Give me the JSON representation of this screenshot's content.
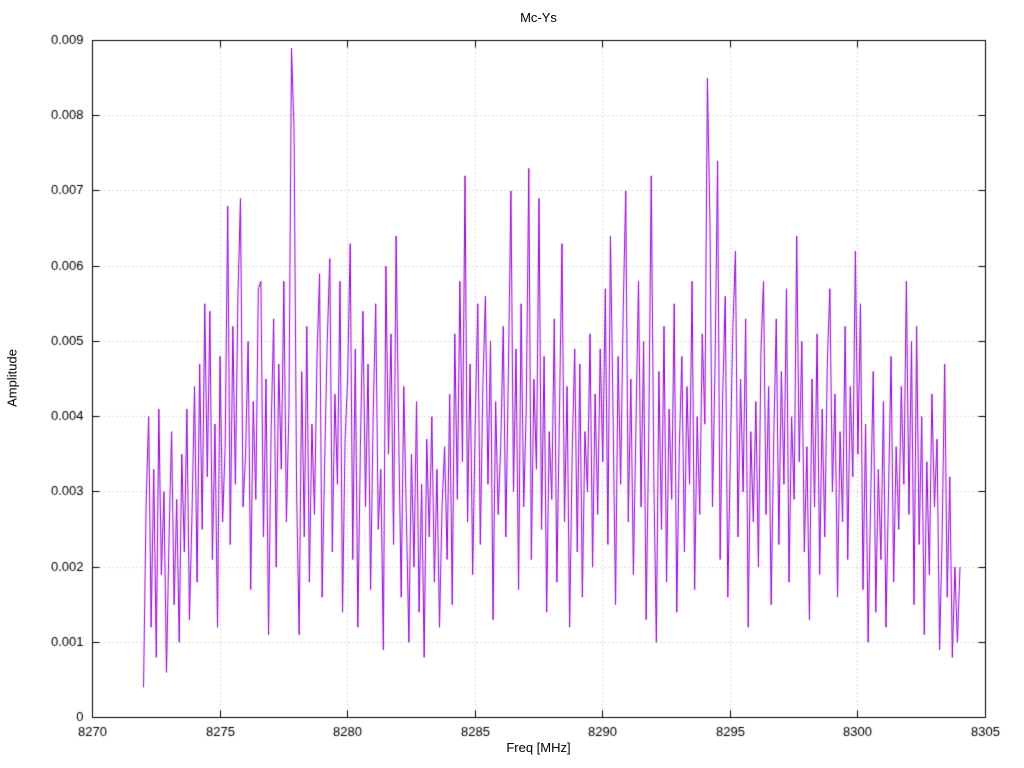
{
  "style": {
    "line_color": "#9400d3",
    "grid_color": "#b8b8b8",
    "axis_color": "#000000",
    "text_color": "#000000",
    "background": "#ffffff"
  },
  "chart_data": {
    "type": "line",
    "title": "Mc-Ys",
    "xlabel": "Freq [MHz]",
    "ylabel": "Amplitude",
    "xlim": [
      8270,
      8305
    ],
    "ylim": [
      0,
      0.009
    ],
    "grid": true,
    "legend": "none",
    "x_tick_values": [
      8270,
      8275,
      8280,
      8285,
      8290,
      8295,
      8300,
      8305
    ],
    "x_tick_labels": [
      "8270",
      "8275",
      "8280",
      "8285",
      "8290",
      "8295",
      "8300",
      "8305"
    ],
    "y_tick_values": [
      0,
      0.001,
      0.002,
      0.003,
      0.004,
      0.005,
      0.006,
      0.007,
      0.008,
      0.009
    ],
    "y_tick_labels": [
      "0",
      "0.001",
      "0.002",
      "0.003",
      "0.004",
      "0.005",
      "0.006",
      "0.007",
      "0.008",
      "0.009"
    ],
    "x_start": 8272.0,
    "x_step": 0.1,
    "y_scale": 0.0001,
    "values": [
      4,
      28,
      40,
      12,
      33,
      8,
      41,
      19,
      30,
      6,
      24,
      38,
      15,
      29,
      10,
      35,
      22,
      41,
      13,
      27,
      44,
      18,
      47,
      25,
      55,
      32,
      54,
      21,
      39,
      12,
      48,
      26,
      36,
      68,
      23,
      52,
      31,
      56,
      69,
      28,
      35,
      50,
      17,
      42,
      29,
      57,
      58,
      24,
      45,
      11,
      38,
      53,
      20,
      47,
      33,
      58,
      26,
      41,
      89,
      78,
      30,
      11,
      46,
      24,
      52,
      18,
      39,
      27,
      48,
      59,
      16,
      34,
      50,
      61,
      22,
      43,
      31,
      58,
      14,
      37,
      45,
      63,
      21,
      49,
      12,
      36,
      54,
      28,
      47,
      17,
      40,
      55,
      25,
      33,
      9,
      60,
      35,
      51,
      23,
      64,
      38,
      16,
      44,
      27,
      10,
      35,
      20,
      42,
      14,
      31,
      8,
      37,
      24,
      40,
      18,
      33,
      12,
      28,
      36,
      21,
      43,
      15,
      51,
      29,
      58,
      34,
      72,
      26,
      47,
      19,
      39,
      55,
      23,
      44,
      56,
      31,
      50,
      13,
      42,
      27,
      36,
      52,
      24,
      46,
      70,
      30,
      49,
      17,
      55,
      28,
      41,
      73,
      21,
      45,
      33,
      69,
      25,
      48,
      14,
      38,
      29,
      53,
      18,
      40,
      63,
      26,
      44,
      12,
      35,
      49,
      22,
      47,
      16,
      38,
      30,
      51,
      20,
      43,
      27,
      49,
      34,
      57,
      23,
      64,
      41,
      15,
      48,
      31,
      54,
      70,
      26,
      45,
      19,
      39,
      58,
      28,
      50,
      13,
      37,
      72,
      32,
      10,
      46,
      25,
      52,
      18,
      41,
      29,
      55,
      14,
      36,
      48,
      22,
      44,
      31,
      58,
      17,
      40,
      27,
      51,
      39,
      85,
      66,
      28,
      47,
      74,
      21,
      43,
      56,
      16,
      35,
      52,
      62,
      24,
      45,
      30,
      53,
      12,
      38,
      26,
      42,
      20,
      49,
      58,
      27,
      44,
      15,
      37,
      53,
      23,
      46,
      31,
      57,
      18,
      40,
      29,
      64,
      34,
      50,
      22,
      36,
      13,
      45,
      28,
      51,
      19,
      41,
      24,
      47,
      57,
      30,
      43,
      16,
      38,
      26,
      52,
      21,
      44,
      32,
      62,
      35,
      55,
      17,
      39,
      10,
      29,
      46,
      14,
      33,
      21,
      42,
      12,
      30,
      48,
      18,
      36,
      25,
      44,
      31,
      58,
      27,
      50,
      15,
      52,
      23,
      40,
      11,
      34,
      19,
      43,
      28,
      37,
      9,
      24,
      47,
      16,
      32,
      8,
      20,
      10,
      20
    ]
  }
}
